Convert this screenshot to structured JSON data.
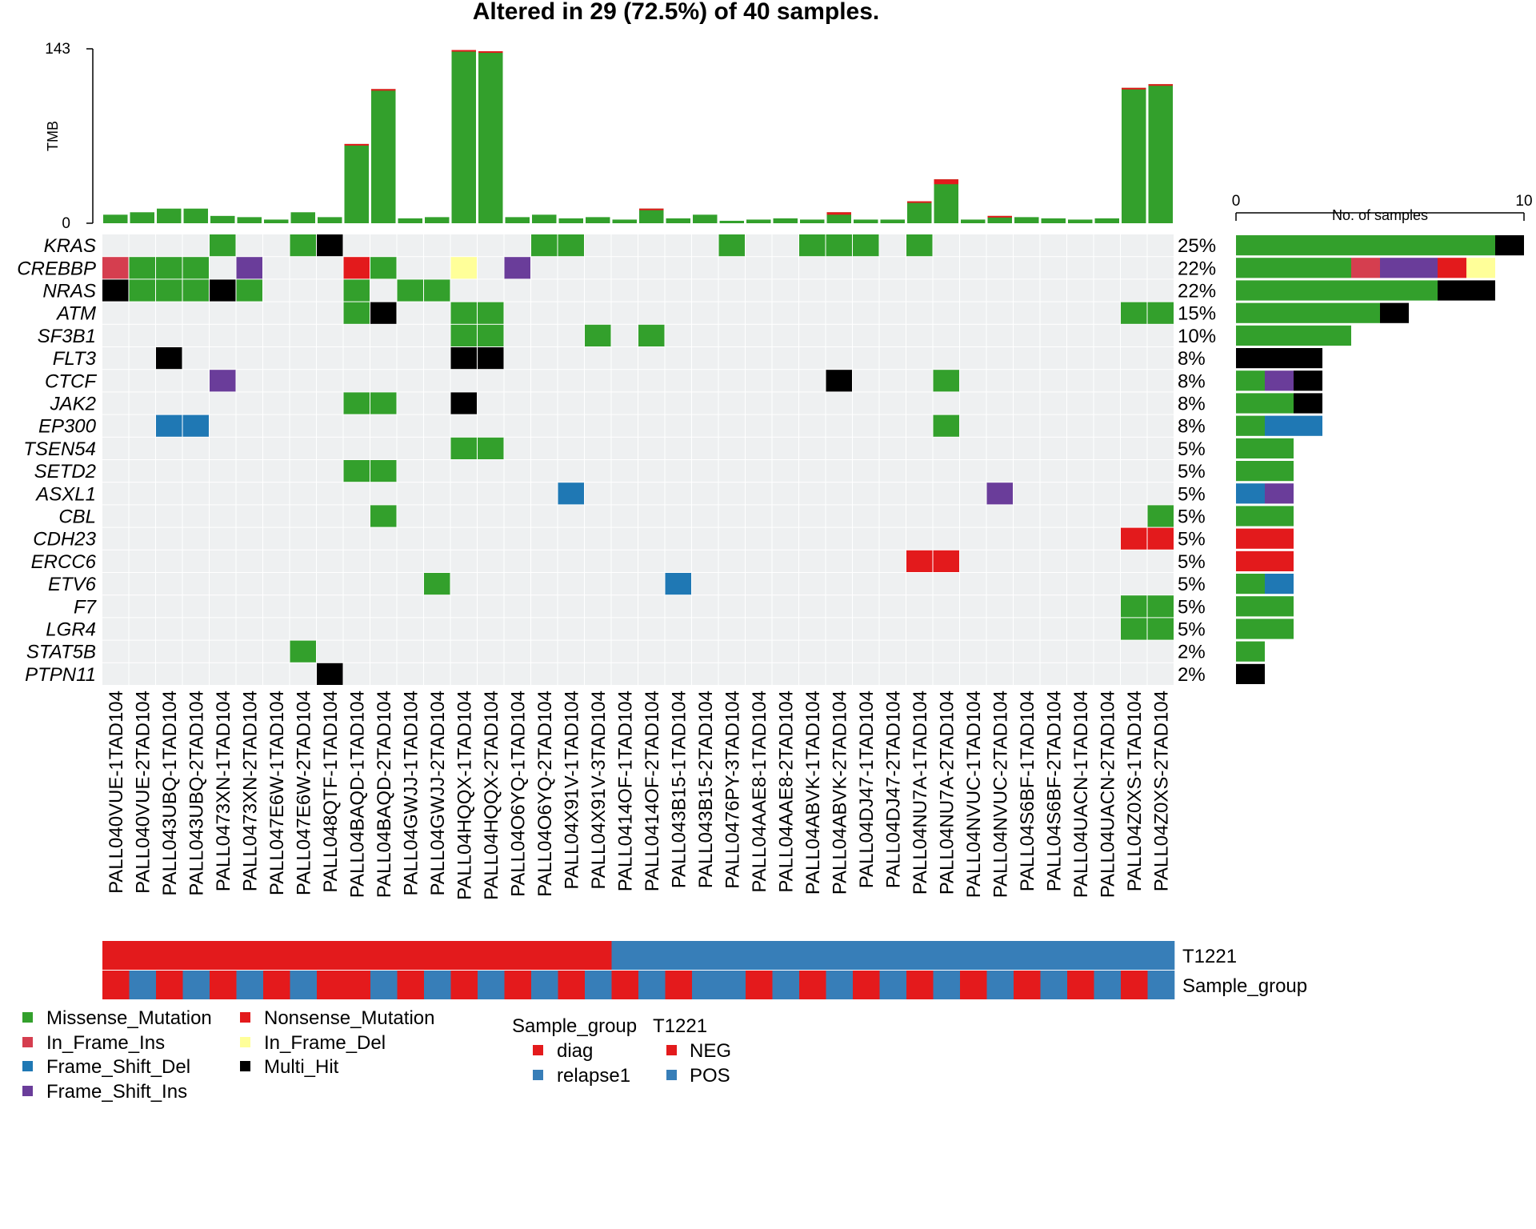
{
  "chart_data": {
    "type": "heatmap",
    "title": "Altered in 29 (72.5%) of 40 samples.",
    "colors": {
      "Missense_Mutation": "#33a02c",
      "Nonsense_Mutation": "#e31a1c",
      "In_Frame_Ins": "#d53e4f",
      "In_Frame_Del": "#ffff99",
      "Frame_Shift_Del": "#1f78b4",
      "Multi_Hit": "#000000",
      "Frame_Shift_Ins": "#6a3d9a",
      "background": "#eef0f1"
    },
    "samples": [
      "PALL040VUE-1TAD104",
      "PALL040VUE-2TAD104",
      "PALL043UBQ-1TAD104",
      "PALL043UBQ-2TAD104",
      "PALL0473XN-1TAD104",
      "PALL0473XN-2TAD104",
      "PALL047E6W-1TAD104",
      "PALL047E6W-2TAD104",
      "PALL048QTF-1TAD104",
      "PALL04BAQD-1TAD104",
      "PALL04BAQD-2TAD104",
      "PALL04GWJJ-1TAD104",
      "PALL04GWJJ-2TAD104",
      "PALL04HQQX-1TAD104",
      "PALL04HQQX-2TAD104",
      "PALL04O6YQ-1TAD104",
      "PALL04O6YQ-2TAD104",
      "PALL04X91V-1TAD104",
      "PALL04X91V-3TAD104",
      "PALL0414OF-1TAD104",
      "PALL0414OF-2TAD104",
      "PALL043B15-1TAD104",
      "PALL043B15-2TAD104",
      "PALL0476PY-3TAD104",
      "PALL04AAE8-1TAD104",
      "PALL04AAE8-2TAD104",
      "PALL04ABVK-1TAD104",
      "PALL04ABVK-2TAD104",
      "PALL04DJ47-1TAD104",
      "PALL04DJ47-2TAD104",
      "PALL04NU7A-1TAD104",
      "PALL04NU7A-2TAD104",
      "PALL04NVUC-1TAD104",
      "PALL04NVUC-2TAD104",
      "PALL04S6BF-1TAD104",
      "PALL04S6BF-2TAD104",
      "PALL04UACN-1TAD104",
      "PALL04UACN-2TAD104",
      "PALL04Z0XS-1TAD104",
      "PALL04Z0XS-2TAD104"
    ],
    "genes": [
      {
        "name": "KRAS",
        "pct": "25%",
        "cells": [
          [
            4,
            "Missense_Mutation"
          ],
          [
            7,
            "Missense_Mutation"
          ],
          [
            8,
            "Multi_Hit"
          ],
          [
            16,
            "Missense_Mutation"
          ],
          [
            17,
            "Missense_Mutation"
          ],
          [
            23,
            "Missense_Mutation"
          ],
          [
            26,
            "Missense_Mutation"
          ],
          [
            27,
            "Missense_Mutation"
          ],
          [
            28,
            "Missense_Mutation"
          ],
          [
            30,
            "Missense_Mutation"
          ]
        ],
        "bar": [
          [
            "Missense_Mutation",
            9
          ],
          [
            "Multi_Hit",
            1
          ]
        ]
      },
      {
        "name": "CREBBP",
        "pct": "22%",
        "cells": [
          [
            0,
            "In_Frame_Ins"
          ],
          [
            1,
            "Missense_Mutation"
          ],
          [
            2,
            "Missense_Mutation"
          ],
          [
            3,
            "Missense_Mutation"
          ],
          [
            5,
            "Frame_Shift_Ins"
          ],
          [
            9,
            "Nonsense_Mutation"
          ],
          [
            10,
            "Missense_Mutation"
          ],
          [
            13,
            "In_Frame_Del"
          ],
          [
            15,
            "Frame_Shift_Ins"
          ]
        ],
        "bar": [
          [
            "Missense_Mutation",
            4
          ],
          [
            "In_Frame_Ins",
            1
          ],
          [
            "Frame_Shift_Ins",
            2
          ],
          [
            "Nonsense_Mutation",
            1
          ],
          [
            "In_Frame_Del",
            1
          ]
        ]
      },
      {
        "name": "NRAS",
        "pct": "22%",
        "cells": [
          [
            0,
            "Multi_Hit"
          ],
          [
            1,
            "Missense_Mutation"
          ],
          [
            2,
            "Missense_Mutation"
          ],
          [
            3,
            "Missense_Mutation"
          ],
          [
            4,
            "Multi_Hit"
          ],
          [
            5,
            "Missense_Mutation"
          ],
          [
            9,
            "Missense_Mutation"
          ],
          [
            11,
            "Missense_Mutation"
          ],
          [
            12,
            "Missense_Mutation"
          ]
        ],
        "bar": [
          [
            "Missense_Mutation",
            7
          ],
          [
            "Multi_Hit",
            2
          ]
        ]
      },
      {
        "name": "ATM",
        "pct": "15%",
        "cells": [
          [
            9,
            "Missense_Mutation"
          ],
          [
            10,
            "Multi_Hit"
          ],
          [
            13,
            "Missense_Mutation"
          ],
          [
            14,
            "Missense_Mutation"
          ],
          [
            38,
            "Missense_Mutation"
          ],
          [
            39,
            "Missense_Mutation"
          ]
        ],
        "bar": [
          [
            "Missense_Mutation",
            5
          ],
          [
            "Multi_Hit",
            1
          ]
        ]
      },
      {
        "name": "SF3B1",
        "pct": "10%",
        "cells": [
          [
            13,
            "Missense_Mutation"
          ],
          [
            14,
            "Missense_Mutation"
          ],
          [
            18,
            "Missense_Mutation"
          ],
          [
            20,
            "Missense_Mutation"
          ]
        ],
        "bar": [
          [
            "Missense_Mutation",
            4
          ]
        ]
      },
      {
        "name": "FLT3",
        "pct": "8%",
        "cells": [
          [
            2,
            "Multi_Hit"
          ],
          [
            13,
            "Multi_Hit"
          ],
          [
            14,
            "Multi_Hit"
          ]
        ],
        "bar": [
          [
            "Multi_Hit",
            3
          ]
        ]
      },
      {
        "name": "CTCF",
        "pct": "8%",
        "cells": [
          [
            4,
            "Frame_Shift_Ins"
          ],
          [
            27,
            "Multi_Hit"
          ],
          [
            31,
            "Missense_Mutation"
          ]
        ],
        "bar": [
          [
            "Missense_Mutation",
            1
          ],
          [
            "Frame_Shift_Ins",
            1
          ],
          [
            "Multi_Hit",
            1
          ]
        ]
      },
      {
        "name": "JAK2",
        "pct": "8%",
        "cells": [
          [
            9,
            "Missense_Mutation"
          ],
          [
            10,
            "Missense_Mutation"
          ],
          [
            13,
            "Multi_Hit"
          ]
        ],
        "bar": [
          [
            "Missense_Mutation",
            2
          ],
          [
            "Multi_Hit",
            1
          ]
        ]
      },
      {
        "name": "EP300",
        "pct": "8%",
        "cells": [
          [
            2,
            "Frame_Shift_Del"
          ],
          [
            3,
            "Frame_Shift_Del"
          ],
          [
            31,
            "Missense_Mutation"
          ]
        ],
        "bar": [
          [
            "Missense_Mutation",
            1
          ],
          [
            "Frame_Shift_Del",
            2
          ]
        ]
      },
      {
        "name": "TSEN54",
        "pct": "5%",
        "cells": [
          [
            13,
            "Missense_Mutation"
          ],
          [
            14,
            "Missense_Mutation"
          ]
        ],
        "bar": [
          [
            "Missense_Mutation",
            2
          ]
        ]
      },
      {
        "name": "SETD2",
        "pct": "5%",
        "cells": [
          [
            9,
            "Missense_Mutation"
          ],
          [
            10,
            "Missense_Mutation"
          ]
        ],
        "bar": [
          [
            "Missense_Mutation",
            2
          ]
        ]
      },
      {
        "name": "ASXL1",
        "pct": "5%",
        "cells": [
          [
            17,
            "Frame_Shift_Del"
          ],
          [
            33,
            "Frame_Shift_Ins"
          ]
        ],
        "bar": [
          [
            "Frame_Shift_Del",
            1
          ],
          [
            "Frame_Shift_Ins",
            1
          ]
        ]
      },
      {
        "name": "CBL",
        "pct": "5%",
        "cells": [
          [
            10,
            "Missense_Mutation"
          ],
          [
            39,
            "Missense_Mutation"
          ]
        ],
        "bar": [
          [
            "Missense_Mutation",
            2
          ]
        ]
      },
      {
        "name": "CDH23",
        "pct": "5%",
        "cells": [
          [
            38,
            "Nonsense_Mutation"
          ],
          [
            39,
            "Nonsense_Mutation"
          ]
        ],
        "bar": [
          [
            "Nonsense_Mutation",
            2
          ]
        ]
      },
      {
        "name": "ERCC6",
        "pct": "5%",
        "cells": [
          [
            30,
            "Nonsense_Mutation"
          ],
          [
            31,
            "Nonsense_Mutation"
          ]
        ],
        "bar": [
          [
            "Nonsense_Mutation",
            2
          ]
        ]
      },
      {
        "name": "ETV6",
        "pct": "5%",
        "cells": [
          [
            12,
            "Missense_Mutation"
          ],
          [
            21,
            "Frame_Shift_Del"
          ]
        ],
        "bar": [
          [
            "Missense_Mutation",
            1
          ],
          [
            "Frame_Shift_Del",
            1
          ]
        ]
      },
      {
        "name": "F7",
        "pct": "5%",
        "cells": [
          [
            38,
            "Missense_Mutation"
          ],
          [
            39,
            "Missense_Mutation"
          ]
        ],
        "bar": [
          [
            "Missense_Mutation",
            2
          ]
        ]
      },
      {
        "name": "LGR4",
        "pct": "5%",
        "cells": [
          [
            38,
            "Missense_Mutation"
          ],
          [
            39,
            "Missense_Mutation"
          ]
        ],
        "bar": [
          [
            "Missense_Mutation",
            2
          ]
        ]
      },
      {
        "name": "STAT5B",
        "pct": "2%",
        "cells": [
          [
            7,
            "Missense_Mutation"
          ]
        ],
        "bar": [
          [
            "Missense_Mutation",
            1
          ]
        ]
      },
      {
        "name": "PTPN11",
        "pct": "2%",
        "cells": [
          [
            8,
            "Multi_Hit"
          ]
        ],
        "bar": [
          [
            "Multi_Hit",
            1
          ]
        ]
      }
    ],
    "tmb": {
      "ylabel": "TMB",
      "ylim": [
        0,
        143
      ],
      "ticks": [
        "0",
        "143"
      ],
      "values": [
        7,
        9,
        12,
        12,
        6,
        5,
        3,
        9,
        5,
        65,
        110,
        4,
        5,
        142,
        141,
        5,
        7,
        4,
        5,
        3,
        12,
        4,
        7,
        2,
        3,
        4,
        3,
        9,
        3,
        3,
        18,
        36,
        3,
        6,
        5,
        4,
        3,
        4,
        111,
        114
      ],
      "nonsense": [
        0,
        0,
        0,
        0,
        0,
        0,
        0,
        0,
        0,
        1,
        1,
        0,
        0,
        1,
        1,
        0,
        0,
        0,
        0,
        0,
        1,
        0,
        0,
        0,
        0,
        0,
        0,
        2,
        0,
        0,
        1,
        4,
        0,
        1,
        0,
        0,
        0,
        0,
        1,
        1
      ]
    },
    "side_bar": {
      "xlabel": "No. of samples",
      "xlim": [
        0,
        10
      ],
      "ticks": [
        "0",
        "10"
      ]
    },
    "annotations": [
      {
        "label": "T1221",
        "values": [
          "NEG",
          "NEG",
          "NEG",
          "NEG",
          "NEG",
          "NEG",
          "NEG",
          "NEG",
          "NEG",
          "NEG",
          "NEG",
          "NEG",
          "NEG",
          "NEG",
          "NEG",
          "NEG",
          "NEG",
          "NEG",
          "NEG",
          "POS",
          "POS",
          "POS",
          "POS",
          "POS",
          "POS",
          "POS",
          "POS",
          "POS",
          "POS",
          "POS",
          "POS",
          "POS",
          "POS",
          "POS",
          "POS",
          "POS",
          "POS",
          "POS",
          "POS",
          "POS"
        ]
      },
      {
        "label": "Sample_group",
        "values": [
          "diag",
          "relapse1",
          "diag",
          "relapse1",
          "diag",
          "relapse1",
          "diag",
          "relapse1",
          "diag",
          "diag",
          "relapse1",
          "diag",
          "relapse1",
          "diag",
          "relapse1",
          "diag",
          "relapse1",
          "diag",
          "relapse1",
          "diag",
          "relapse1",
          "diag",
          "relapse1",
          "relapse1",
          "diag",
          "relapse1",
          "diag",
          "relapse1",
          "diag",
          "relapse1",
          "diag",
          "relapse1",
          "diag",
          "relapse1",
          "diag",
          "relapse1",
          "diag",
          "relapse1",
          "diag",
          "relapse1"
        ]
      }
    ],
    "annotation_colors": {
      "NEG": "#e31a1c",
      "POS": "#377eb8",
      "diag": "#e41a1c",
      "relapse1": "#377eb8"
    },
    "legend": {
      "variants": [
        "Missense_Mutation",
        "In_Frame_Ins",
        "Frame_Shift_Del",
        "Frame_Shift_Ins",
        "Nonsense_Mutation",
        "In_Frame_Del",
        "Multi_Hit"
      ],
      "sample_group_title": "Sample_group",
      "sample_group_items": [
        "diag",
        "relapse1"
      ],
      "t1221_title": "T1221",
      "t1221_items": [
        "NEG",
        "POS"
      ]
    }
  }
}
